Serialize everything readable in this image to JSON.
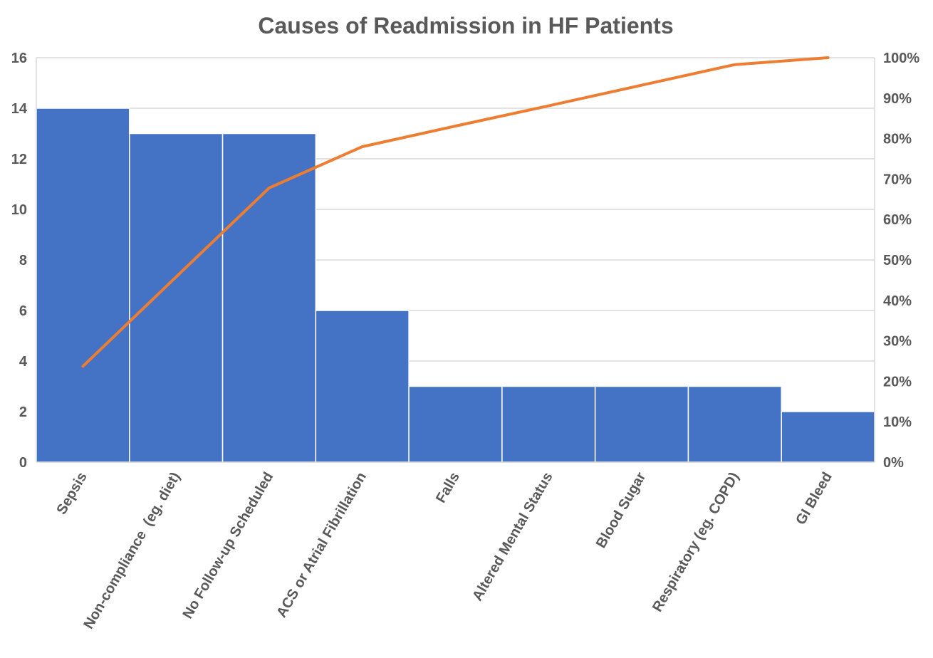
{
  "chart_data": {
    "type": "bar",
    "title": "Causes of Readmission in HF Patients",
    "categories": [
      "Sepsis",
      "Non-compliance  (eg. diet)",
      "No Follow-up Scheduled",
      "ACS or Atrial Fibrillation",
      "Falls",
      "Altered Mental Status",
      "Blood Sugar",
      "Respiratory (eg. COPD)",
      "GI Bleed"
    ],
    "values": [
      14,
      13,
      13,
      6,
      3,
      3,
      3,
      3,
      2
    ],
    "cumulative_percent": [
      23.7,
      45.8,
      67.8,
      78.0,
      83.1,
      88.1,
      93.2,
      98.3,
      100.0
    ],
    "ylim": [
      0,
      16
    ],
    "yticks": [
      0,
      2,
      4,
      6,
      8,
      10,
      12,
      14,
      16
    ],
    "y2lim": [
      0,
      100
    ],
    "y2ticks": [
      "0%",
      "10%",
      "20%",
      "30%",
      "40%",
      "50%",
      "60%",
      "70%",
      "80%",
      "90%",
      "100%"
    ],
    "grid": true,
    "colors": {
      "bar": "#4472C4",
      "line": "#ED7D31",
      "grid": "#D9D9D9",
      "text": "#595959"
    }
  }
}
